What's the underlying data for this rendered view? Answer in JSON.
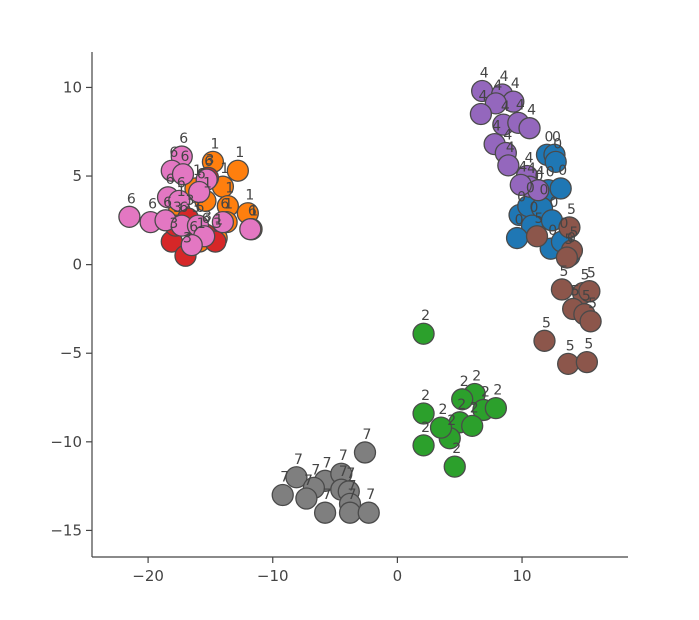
{
  "chart_data": {
    "type": "scatter",
    "title": "",
    "xlabel": "",
    "ylabel": "",
    "xlim": [
      -24.5,
      18.5
    ],
    "ylim": [
      -16.5,
      12.0
    ],
    "x_ticks": [
      -20,
      -10,
      0,
      10
    ],
    "y_ticks": [
      -15,
      -10,
      -5,
      0,
      5,
      10
    ],
    "x_tick_labels": [
      "−20",
      "−10",
      "0",
      "10"
    ],
    "y_tick_labels": [
      "−15",
      "−10",
      "−5",
      "0",
      "5",
      "10"
    ],
    "grid": false,
    "legend": "none",
    "point_labels_shown": true,
    "series": [
      {
        "label": "0",
        "color": "#1f77b4",
        "points": [
          [
            12.0,
            6.2
          ],
          [
            12.6,
            6.2
          ],
          [
            12.7,
            5.8
          ],
          [
            11.2,
            4.0
          ],
          [
            12.1,
            4.2
          ],
          [
            13.1,
            4.3
          ],
          [
            9.8,
            2.8
          ],
          [
            10.5,
            3.3
          ],
          [
            11.6,
            3.2
          ],
          [
            10.8,
            2.2
          ],
          [
            12.4,
            2.5
          ],
          [
            9.6,
            1.5
          ],
          [
            12.3,
            0.9
          ],
          [
            13.2,
            1.3
          ],
          [
            13.8,
            0.5
          ]
        ]
      },
      {
        "label": "1",
        "color": "#ff7f0e",
        "points": [
          [
            -14.8,
            5.8
          ],
          [
            -12.8,
            5.3
          ],
          [
            -16.2,
            4.3
          ],
          [
            -14.0,
            4.4
          ],
          [
            -13.6,
            3.3
          ],
          [
            -15.4,
            3.6
          ],
          [
            -12.0,
            2.9
          ],
          [
            -14.5,
            1.5
          ],
          [
            -15.9,
            1.3
          ],
          [
            -13.7,
            2.4
          ],
          [
            -17.5,
            3.1
          ],
          [
            -11.7,
            2.0
          ]
        ]
      },
      {
        "label": "2",
        "color": "#2ca02c",
        "points": [
          [
            2.1,
            -3.9
          ],
          [
            6.2,
            -7.3
          ],
          [
            5.2,
            -7.6
          ],
          [
            6.9,
            -8.2
          ],
          [
            7.9,
            -8.1
          ],
          [
            2.1,
            -8.4
          ],
          [
            5.0,
            -8.9
          ],
          [
            6.0,
            -9.1
          ],
          [
            4.2,
            -9.8
          ],
          [
            2.1,
            -10.2
          ],
          [
            4.6,
            -11.4
          ],
          [
            3.5,
            -9.2
          ]
        ]
      },
      {
        "label": "3",
        "color": "#d62728",
        "points": [
          [
            -18.1,
            1.3
          ],
          [
            -17.0,
            0.5
          ],
          [
            -16.3,
            2.2
          ],
          [
            -15.4,
            1.7
          ],
          [
            -14.6,
            1.3
          ],
          [
            -15.2,
            4.9
          ],
          [
            -16.8,
            2.6
          ],
          [
            -17.8,
            2.2
          ]
        ]
      },
      {
        "label": "4",
        "color": "#9467bd",
        "points": [
          [
            6.8,
            9.8
          ],
          [
            8.4,
            9.6
          ],
          [
            9.3,
            9.2
          ],
          [
            7.9,
            9.1
          ],
          [
            6.7,
            8.5
          ],
          [
            8.5,
            7.9
          ],
          [
            9.7,
            8.0
          ],
          [
            10.6,
            7.7
          ],
          [
            7.8,
            6.8
          ],
          [
            8.7,
            6.3
          ],
          [
            8.9,
            5.6
          ],
          [
            10.4,
            5.0
          ],
          [
            10.6,
            4.4
          ],
          [
            11.3,
            4.2
          ],
          [
            9.9,
            4.5
          ]
        ]
      },
      {
        "label": "5",
        "color": "#8c564b",
        "points": [
          [
            11.2,
            1.6
          ],
          [
            13.8,
            2.1
          ],
          [
            14.0,
            0.8
          ],
          [
            13.6,
            0.4
          ],
          [
            13.2,
            -1.4
          ],
          [
            14.9,
            -1.6
          ],
          [
            15.4,
            -1.5
          ],
          [
            14.1,
            -2.5
          ],
          [
            15.0,
            -2.8
          ],
          [
            15.5,
            -3.2
          ],
          [
            11.8,
            -4.3
          ],
          [
            13.7,
            -5.6
          ],
          [
            15.2,
            -5.5
          ]
        ]
      },
      {
        "label": "6",
        "color": "#e377c2",
        "points": [
          [
            -17.3,
            6.1
          ],
          [
            -18.1,
            5.3
          ],
          [
            -17.2,
            5.1
          ],
          [
            -15.3,
            4.8
          ],
          [
            -15.9,
            4.1
          ],
          [
            -18.4,
            3.8
          ],
          [
            -17.5,
            3.6
          ],
          [
            -21.5,
            2.7
          ],
          [
            -19.8,
            2.4
          ],
          [
            -18.6,
            2.5
          ],
          [
            -17.3,
            2.2
          ],
          [
            -16.0,
            2.2
          ],
          [
            -14.0,
            2.4
          ],
          [
            -15.5,
            1.6
          ],
          [
            -16.5,
            1.1
          ],
          [
            -11.8,
            2.0
          ]
        ]
      },
      {
        "label": "7",
        "color": "#7f7f7f",
        "points": [
          [
            -2.6,
            -10.6
          ],
          [
            -8.1,
            -12.0
          ],
          [
            -5.8,
            -12.2
          ],
          [
            -4.5,
            -11.8
          ],
          [
            -6.7,
            -12.6
          ],
          [
            -4.5,
            -12.7
          ],
          [
            -9.2,
            -13.0
          ],
          [
            -7.3,
            -13.2
          ],
          [
            -3.9,
            -12.8
          ],
          [
            -3.8,
            -13.5
          ],
          [
            -5.8,
            -14.0
          ],
          [
            -3.8,
            -14.0
          ],
          [
            -2.3,
            -14.0
          ]
        ]
      }
    ]
  }
}
